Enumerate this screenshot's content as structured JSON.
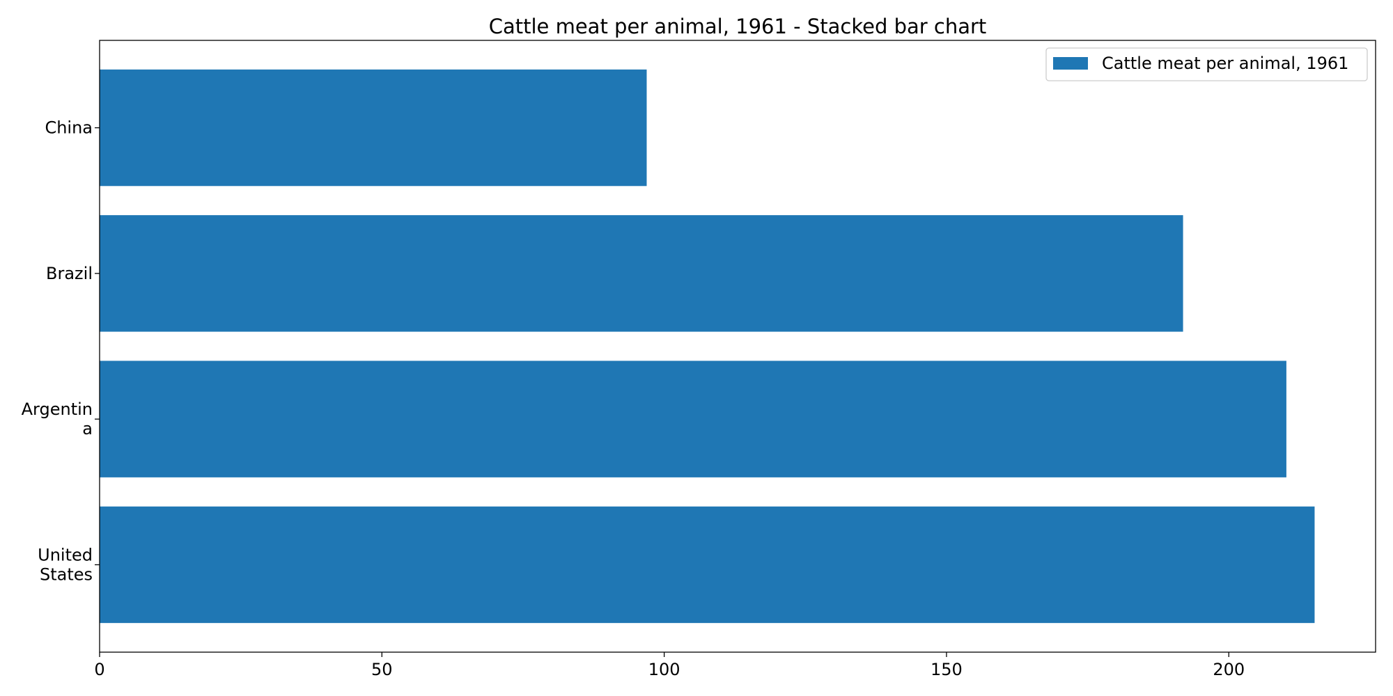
{
  "chart_data": {
    "type": "bar",
    "orientation": "horizontal",
    "title": "Cattle meat per animal, 1961 - Stacked bar chart",
    "xlabel": "",
    "ylabel": "",
    "categories": [
      "United States",
      "Argentina",
      "Brazil",
      "China"
    ],
    "category_label_lines": [
      [
        "United",
        "States"
      ],
      [
        "Argentin",
        "a"
      ],
      [
        "Brazil"
      ],
      [
        "China"
      ]
    ],
    "series": [
      {
        "name": "Cattle meat per animal, 1961",
        "values": [
          215.2,
          210.2,
          191.9,
          96.9
        ],
        "color": "#1f77b4"
      }
    ],
    "xlim": [
      0,
      226
    ],
    "xticks": [
      0,
      50,
      100,
      150,
      200
    ],
    "grid": false,
    "legend_position": "top-right"
  }
}
